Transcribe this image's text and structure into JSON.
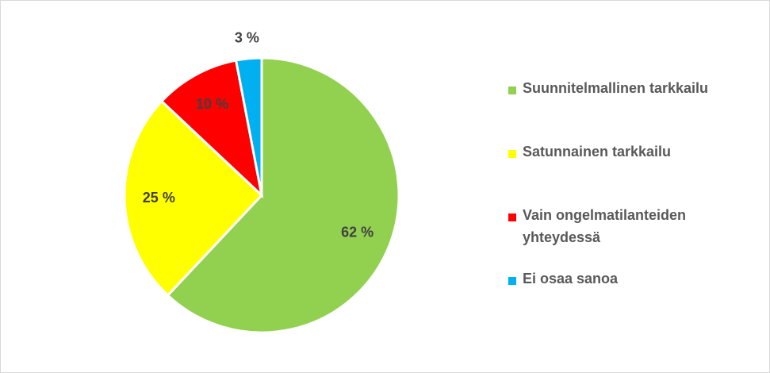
{
  "chart_data": {
    "type": "pie",
    "categories": [
      "Suunnitelmallinen tarkkailu",
      "Satunnainen tarkkailu",
      "Vain ongelmatilanteiden yhteydessä",
      "Ei osaa sanoa"
    ],
    "values": [
      62,
      25,
      10,
      3
    ],
    "value_labels": [
      "62 %",
      "25 %",
      "10 %",
      "3 %"
    ],
    "colors": [
      "#92d050",
      "#ffff00",
      "#ff0000",
      "#00b0f0"
    ],
    "legend": "right"
  }
}
